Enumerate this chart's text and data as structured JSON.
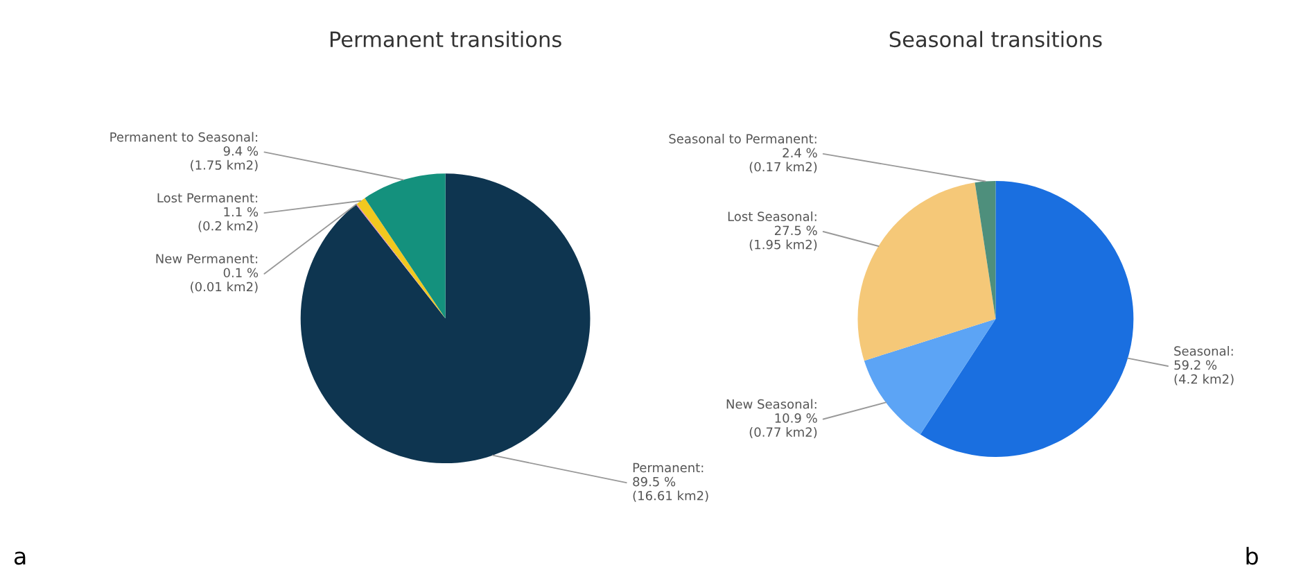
{
  "chart_data": [
    {
      "type": "pie",
      "title": "Permanent transitions",
      "categories": [
        "Permanent",
        "New Permanent",
        "Lost Permanent",
        "Permanent to Seasonal"
      ],
      "values": [
        89.5,
        0.1,
        1.1,
        9.4
      ],
      "value_labels": [
        ":\n89.5 %\n(16.61 km2)",
        ":\n0.1 %\n(0.01 km2)",
        ":\n1.1 %\n(0.2 km2)",
        ":\n9.4 %\n(1.75 km2)"
      ],
      "colors": [
        "#0e3550",
        "#d97bb8",
        "#f2c81f",
        "#14917d"
      ],
      "annotations": [
        "a"
      ]
    },
    {
      "type": "pie",
      "title": "Seasonal transitions",
      "categories": [
        "Seasonal",
        "New Seasonal",
        "Lost Seasonal",
        "Seasonal to Permanent"
      ],
      "values": [
        59.2,
        10.9,
        27.5,
        2.4
      ],
      "value_labels": [
        ":\n59.2 %\n(4.2 km2)",
        ":\n10.9 %\n(0.77 km2)",
        ":\n27.5 %\n(1.95 km2)",
        ":\n2.4 %\n(0.17 km2)"
      ],
      "colors": [
        "#1a6fe0",
        "#5ca4f5",
        "#f5c878",
        "#4e8f7c"
      ],
      "annotations": [
        "b"
      ]
    }
  ]
}
